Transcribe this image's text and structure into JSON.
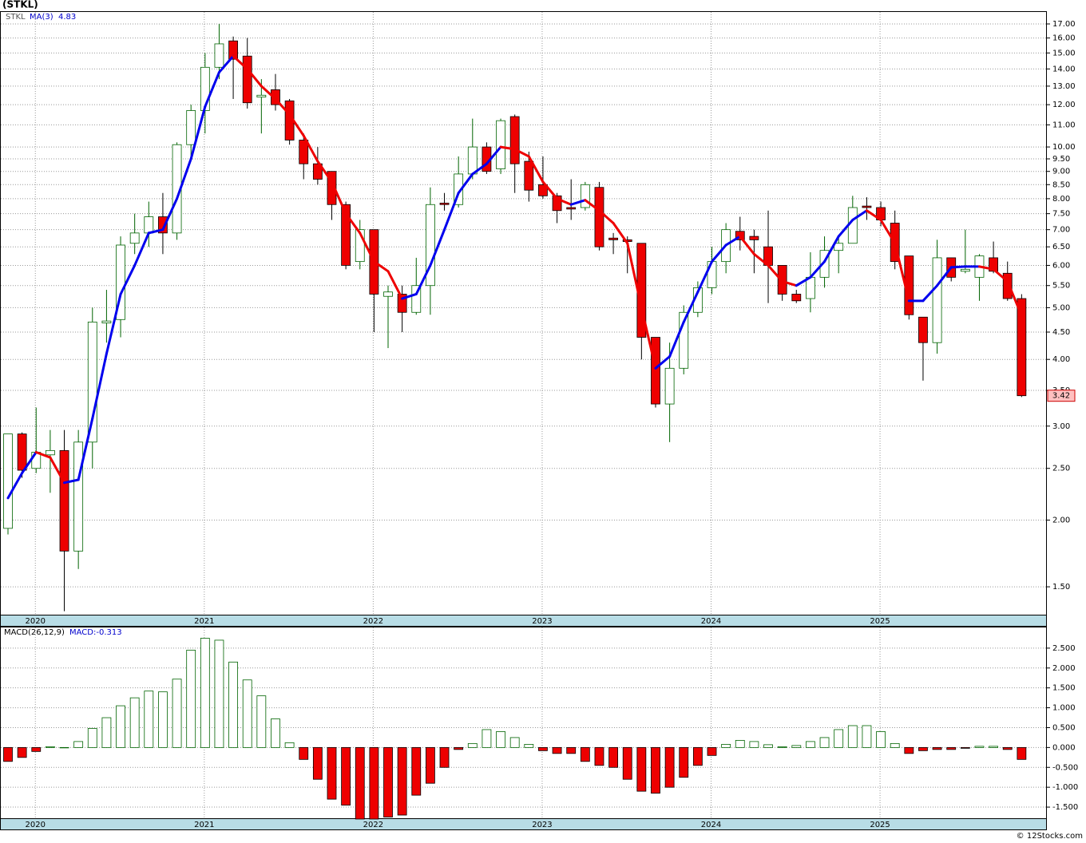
{
  "title": "(STKL)",
  "footer": "© 12Stocks.com",
  "chart_data": [
    {
      "type": "candlestick",
      "symbol": "STKL",
      "log_scale": true,
      "grid": true,
      "up_color": "#006400",
      "down_color": "#ee0000",
      "categories": [
        null,
        null,
        "2020",
        null,
        null,
        null,
        null,
        null,
        null,
        null,
        null,
        null,
        null,
        null,
        "2021",
        null,
        null,
        null,
        null,
        null,
        null,
        null,
        null,
        null,
        null,
        null,
        "2022",
        null,
        null,
        null,
        null,
        null,
        null,
        null,
        null,
        null,
        null,
        null,
        "2023",
        null,
        null,
        null,
        null,
        null,
        null,
        null,
        null,
        null,
        null,
        null,
        "2024",
        null,
        null,
        null,
        null,
        null,
        null,
        null,
        null,
        null,
        null,
        null,
        "2025",
        null,
        null,
        null,
        null,
        null,
        null,
        null,
        null,
        null,
        null
      ],
      "open": [
        1.93,
        2.9,
        2.5,
        2.65,
        2.7,
        1.75,
        2.8,
        4.68,
        4.75,
        6.6,
        6.9,
        7.4,
        6.9,
        10.1,
        11.7,
        14.1,
        15.8,
        14.8,
        12.4,
        12.8,
        12.2,
        10.3,
        9.3,
        9.0,
        7.8,
        6.1,
        7.0,
        5.25,
        5.3,
        4.9,
        5.5,
        7.85,
        7.8,
        8.9,
        10.0,
        9.1,
        11.4,
        9.4,
        8.5,
        8.1,
        7.7,
        7.7,
        8.4,
        6.75,
        6.7,
        6.6,
        4.4,
        3.3,
        3.85,
        4.9,
        5.45,
        6.1,
        6.95,
        6.8,
        6.5,
        6.0,
        5.3,
        5.2,
        5.7,
        6.4,
        6.6,
        7.75,
        7.7,
        7.2,
        6.25,
        4.8,
        4.3,
        6.2,
        5.85,
        5.7,
        6.2,
        5.8,
        5.2
      ],
      "high": [
        2.9,
        2.92,
        3.25,
        2.95,
        2.95,
        2.95,
        5.0,
        5.4,
        6.8,
        7.5,
        7.9,
        8.2,
        10.2,
        12.0,
        15.0,
        17.0,
        16.1,
        16.0,
        13.4,
        13.7,
        12.3,
        10.6,
        10.0,
        9.0,
        7.9,
        7.3,
        7.0,
        5.5,
        5.5,
        6.2,
        8.4,
        8.2,
        9.6,
        11.3,
        10.2,
        11.3,
        11.5,
        9.8,
        9.6,
        8.2,
        8.7,
        8.6,
        8.6,
        6.9,
        6.8,
        6.6,
        4.4,
        4.3,
        5.05,
        5.6,
        6.5,
        7.2,
        7.4,
        7.0,
        7.6,
        6.0,
        5.4,
        6.35,
        6.8,
        6.8,
        8.1,
        8.05,
        7.9,
        7.6,
        6.25,
        4.8,
        6.7,
        6.2,
        7.0,
        6.3,
        6.65,
        6.1,
        5.3
      ],
      "low": [
        1.88,
        2.4,
        2.45,
        2.25,
        1.35,
        1.62,
        2.5,
        4.3,
        4.4,
        6.3,
        6.5,
        6.3,
        6.7,
        9.5,
        10.6,
        13.4,
        12.3,
        11.8,
        10.6,
        11.7,
        10.1,
        8.7,
        8.5,
        7.3,
        5.9,
        5.9,
        4.5,
        4.2,
        4.5,
        4.85,
        4.85,
        7.6,
        7.7,
        8.7,
        8.9,
        8.9,
        8.2,
        7.9,
        8.0,
        7.2,
        7.3,
        7.6,
        6.4,
        6.3,
        5.8,
        4.0,
        3.25,
        2.8,
        3.75,
        4.8,
        5.3,
        5.8,
        6.4,
        5.8,
        5.1,
        5.15,
        5.1,
        4.9,
        5.45,
        5.8,
        6.6,
        7.3,
        7.1,
        5.9,
        4.75,
        3.65,
        4.1,
        5.6,
        5.8,
        5.15,
        5.8,
        5.15,
        3.4
      ],
      "close": [
        2.9,
        2.48,
        2.68,
        2.7,
        1.75,
        2.8,
        4.7,
        4.72,
        6.55,
        6.9,
        7.4,
        6.9,
        10.1,
        11.7,
        14.1,
        15.6,
        14.6,
        12.1,
        12.5,
        12.0,
        10.3,
        9.3,
        8.7,
        7.8,
        6.0,
        7.0,
        5.3,
        5.35,
        4.9,
        5.5,
        7.8,
        7.8,
        8.9,
        10.0,
        9.0,
        11.2,
        9.3,
        8.3,
        8.1,
        7.6,
        7.65,
        8.5,
        6.5,
        6.7,
        6.65,
        4.4,
        3.3,
        3.85,
        4.9,
        5.45,
        6.1,
        7.0,
        6.7,
        6.7,
        6.0,
        5.3,
        5.15,
        5.7,
        6.4,
        6.6,
        7.7,
        7.7,
        7.3,
        6.1,
        4.85,
        4.3,
        6.2,
        5.7,
        5.9,
        6.25,
        5.85,
        5.2,
        3.42
      ],
      "ma": {
        "name": "MA(3)",
        "up_color": "#0000ee",
        "down_color": "#ee0000",
        "values": [
          2.2,
          2.45,
          2.68,
          2.62,
          2.35,
          2.38,
          3.1,
          4.1,
          5.3,
          6.0,
          6.9,
          7.0,
          8.0,
          9.5,
          11.9,
          13.8,
          14.8,
          14.0,
          13.0,
          12.3,
          11.5,
          10.5,
          9.4,
          8.6,
          7.5,
          6.9,
          6.1,
          5.85,
          5.2,
          5.3,
          6.0,
          7.0,
          8.2,
          8.9,
          9.3,
          10.0,
          9.9,
          9.6,
          8.6,
          8.0,
          7.8,
          7.95,
          7.6,
          7.2,
          6.6,
          5.0,
          3.85,
          4.05,
          4.7,
          5.35,
          6.1,
          6.55,
          6.8,
          6.3,
          6.0,
          5.6,
          5.5,
          5.7,
          6.1,
          6.8,
          7.3,
          7.6,
          7.3,
          6.6,
          5.15,
          5.15,
          5.5,
          5.95,
          5.97,
          5.97,
          5.9,
          5.6,
          4.83
        ]
      },
      "ylim": [
        1.33,
        17.9
      ],
      "yticks": [
        {
          "value": 1.5,
          "label": "1.50"
        },
        {
          "value": 2,
          "label": "2.00"
        },
        {
          "value": 2.5,
          "label": "2.50"
        },
        {
          "value": 3,
          "label": "3.00"
        },
        {
          "value": 3.5,
          "label": "3.50"
        },
        {
          "value": 4,
          "label": "4.00"
        },
        {
          "value": 4.5,
          "label": "4.50"
        },
        {
          "value": 5,
          "label": "5.00"
        },
        {
          "value": 5.5,
          "label": "5.50"
        },
        {
          "value": 6,
          "label": "6.00"
        },
        {
          "value": 6.5,
          "label": "6.50"
        },
        {
          "value": 7,
          "label": "7.00"
        },
        {
          "value": 7.5,
          "label": "7.50"
        },
        {
          "value": 8,
          "label": "8.00"
        },
        {
          "value": 8.5,
          "label": "8.50"
        },
        {
          "value": 9,
          "label": "9.00"
        },
        {
          "value": 9.5,
          "label": "9.50"
        },
        {
          "value": 10,
          "label": "10.00"
        },
        {
          "value": 11,
          "label": "11.00"
        },
        {
          "value": 12,
          "label": "12.00"
        },
        {
          "value": 13,
          "label": "13.00"
        },
        {
          "value": 14,
          "label": "14.00"
        },
        {
          "value": 15,
          "label": "15.00"
        },
        {
          "value": 16,
          "label": "16.00"
        },
        {
          "value": 17,
          "label": "17.00"
        }
      ]
    },
    {
      "type": "bar",
      "name": "MACD(26,12,9)",
      "macd_label": "MACD:-0.313",
      "grid": true,
      "up_color": "#006400",
      "down_color": "#ee0000",
      "values": [
        -0.35,
        -0.25,
        -0.1,
        0.02,
        0.0,
        0.15,
        0.48,
        0.75,
        1.05,
        1.25,
        1.42,
        1.4,
        1.72,
        2.45,
        2.75,
        2.7,
        2.15,
        1.7,
        1.3,
        0.72,
        0.12,
        -0.3,
        -0.8,
        -1.3,
        -1.45,
        -1.8,
        -1.8,
        -1.75,
        -1.7,
        -1.2,
        -0.9,
        -0.5,
        -0.05,
        0.1,
        0.45,
        0.4,
        0.25,
        0.08,
        -0.08,
        -0.15,
        -0.15,
        -0.35,
        -0.45,
        -0.5,
        -0.8,
        -1.1,
        -1.15,
        -1.0,
        -0.75,
        -0.45,
        -0.2,
        0.08,
        0.18,
        0.15,
        0.07,
        0.02,
        0.05,
        0.15,
        0.25,
        0.45,
        0.55,
        0.55,
        0.4,
        0.1,
        -0.15,
        -0.08,
        -0.05,
        -0.05,
        -0.02,
        0.03,
        0.03,
        -0.05,
        -0.3
      ],
      "ylim": [
        -1.78,
        3.02
      ],
      "yticks": [
        {
          "value": -1.5,
          "label": "-1.500"
        },
        {
          "value": -1,
          "label": "-1.000"
        },
        {
          "value": -0.5,
          "label": "-0.500"
        },
        {
          "value": 0,
          "label": "0.000"
        },
        {
          "value": 0.5,
          "label": "0.500"
        },
        {
          "value": 1,
          "label": "1.000"
        },
        {
          "value": 1.5,
          "label": "1.500"
        },
        {
          "value": 2,
          "label": "2.000"
        },
        {
          "value": 2.5,
          "label": "2.500"
        }
      ]
    }
  ]
}
